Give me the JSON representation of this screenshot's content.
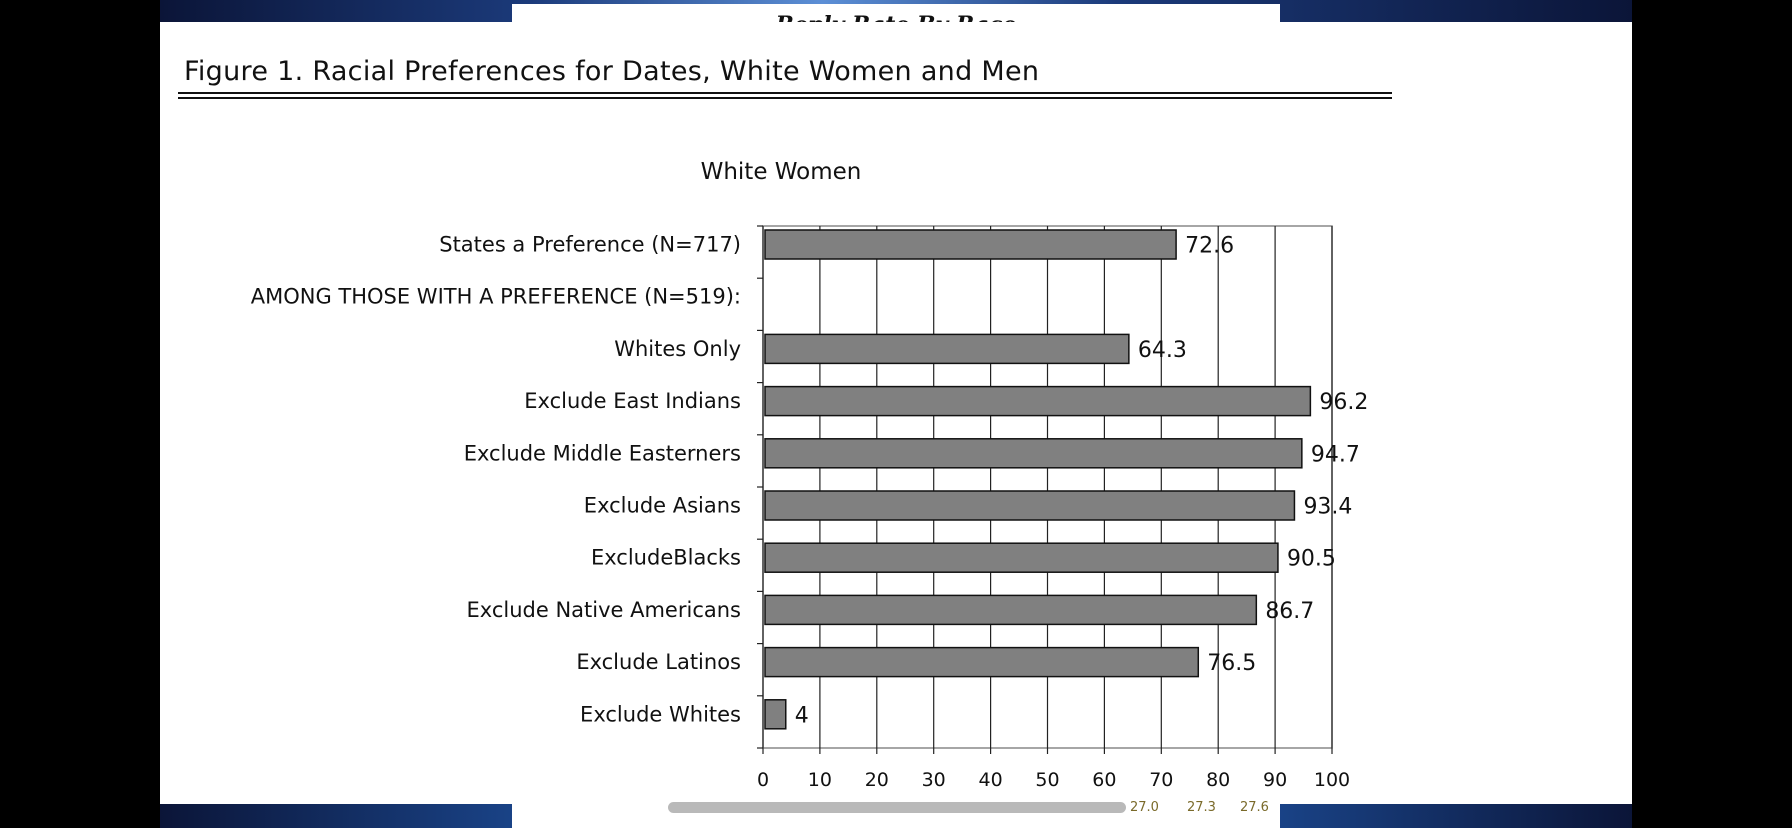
{
  "background_page_title": "Reply Rate By Race",
  "figure_title": "Figure 1. Racial Preferences for Dates, White Women and Men",
  "footer_values": [
    "27.0",
    "27.3",
    "27.6"
  ],
  "chart_data": {
    "type": "bar",
    "orientation": "horizontal",
    "title": "White Women",
    "xlabel": "",
    "ylabel": "",
    "xlim": [
      0,
      100
    ],
    "xticks": [
      0,
      10,
      20,
      30,
      40,
      50,
      60,
      70,
      80,
      90,
      100
    ],
    "grid": true,
    "categories": [
      "States a Preference (N=717)",
      "AMONG THOSE WITH A PREFERENCE (N=519):",
      "Whites Only",
      "Exclude East Indians",
      "Exclude Middle Easterners",
      "Exclude Asians",
      "ExcludeBlacks",
      "Exclude Native Americans",
      "Exclude Latinos",
      "Exclude Whites"
    ],
    "values": [
      72.6,
      null,
      64.3,
      96.2,
      94.7,
      93.4,
      90.5,
      86.7,
      76.5,
      4
    ],
    "value_labels": [
      "72.6",
      "",
      "64.3",
      "96.2",
      "94.7",
      "93.4",
      "90.5",
      "86.7",
      "76.5",
      "4"
    ],
    "bar_color": "#808080"
  }
}
